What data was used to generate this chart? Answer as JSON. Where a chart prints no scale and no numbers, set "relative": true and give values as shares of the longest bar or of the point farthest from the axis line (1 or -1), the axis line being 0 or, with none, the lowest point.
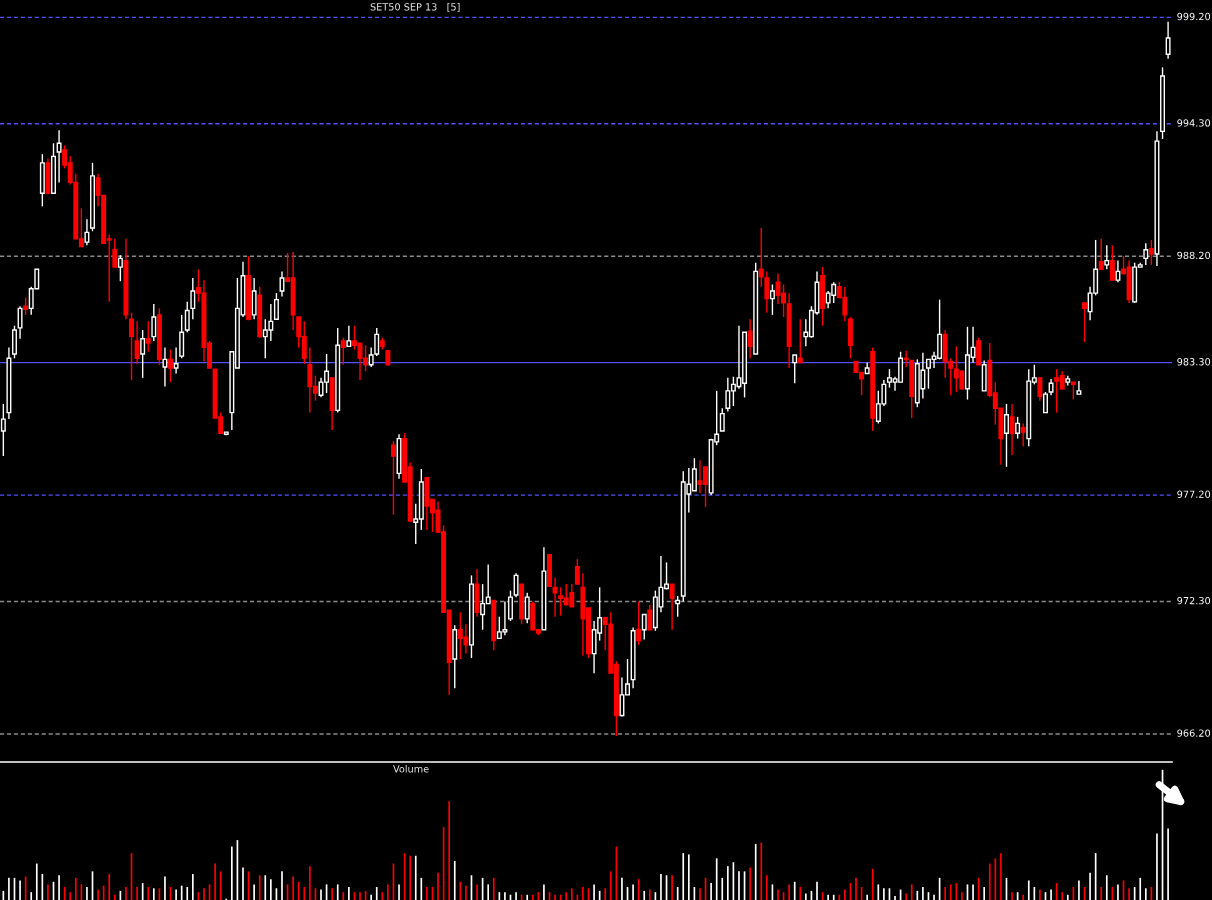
{
  "chart_data": [
    {
      "type": "candlestick",
      "title": "SET50 SEP 13   [5]",
      "categories": [
        null,
        null,
        null,
        null,
        null,
        null,
        null,
        null,
        null,
        null,
        null,
        null,
        null,
        null,
        null,
        null,
        null,
        null,
        null,
        null,
        null,
        null,
        null,
        null,
        null,
        null,
        null,
        null,
        null,
        null,
        null,
        null,
        null,
        null,
        null,
        null,
        null,
        null,
        null,
        null,
        null,
        null,
        null,
        null,
        null,
        null,
        null,
        null,
        null,
        null,
        null,
        null,
        null,
        null,
        null,
        null,
        null,
        null,
        null,
        null,
        null,
        null,
        null,
        null,
        null,
        null,
        null,
        null,
        null,
        null,
        null,
        null,
        null,
        null,
        null,
        null,
        null,
        null,
        null,
        null,
        null,
        null,
        null,
        null,
        null,
        null,
        null,
        null,
        null,
        null,
        null,
        null,
        null,
        null,
        null,
        null,
        null,
        null,
        null,
        null,
        null,
        null,
        null,
        null,
        null,
        null,
        null,
        null,
        null,
        null,
        null,
        null,
        null,
        null,
        null,
        null,
        null,
        null,
        null,
        null,
        null,
        null,
        null,
        null,
        null,
        null,
        null,
        null,
        null,
        null,
        null,
        null,
        null,
        null,
        null,
        null,
        null,
        null,
        null,
        null,
        null,
        null,
        null,
        null,
        null,
        null,
        null,
        null,
        null,
        null,
        null,
        null,
        null,
        null,
        null,
        null,
        null,
        null,
        null,
        null,
        null,
        null,
        null,
        null,
        null,
        null,
        null,
        null,
        null,
        null,
        null,
        null,
        null,
        null,
        null,
        null,
        null,
        null,
        null,
        null,
        null,
        null,
        null,
        null,
        null,
        null,
        null,
        null,
        null,
        null,
        null,
        null,
        null,
        null,
        null,
        null,
        null,
        null,
        null,
        null,
        null,
        null,
        null,
        null,
        null,
        null,
        null,
        null,
        null,
        null
      ],
      "ohlc": [
        [
          980.15,
          981.4,
          979.0,
          980.7
        ],
        [
          981.0,
          984.0,
          980.7,
          983.5
        ],
        [
          983.7,
          985.0,
          983.5,
          984.8
        ],
        [
          984.9,
          985.9,
          984.4,
          985.8
        ],
        [
          985.9,
          986.3,
          985.5,
          985.75
        ],
        [
          985.8,
          986.8,
          985.5,
          986.7
        ],
        [
          986.7,
          987.6,
          986.7,
          987.6
        ],
        [
          991.1,
          992.9,
          990.5,
          992.5
        ],
        [
          992.5,
          992.7,
          991.1,
          991.1
        ],
        [
          991.1,
          993.4,
          991.1,
          992.8
        ],
        [
          993.0,
          994.0,
          991.6,
          993.4
        ],
        [
          993.1,
          993.3,
          992.25,
          992.4
        ],
        [
          992.5,
          992.8,
          991.5,
          991.6
        ],
        [
          991.6,
          992.0,
          989.0,
          989.0
        ],
        [
          989.0,
          990.4,
          988.65,
          988.65
        ],
        [
          988.85,
          989.9,
          988.7,
          989.3
        ],
        [
          989.5,
          992.5,
          989.35,
          991.9
        ],
        [
          991.8,
          992.0,
          990.5,
          991.0
        ],
        [
          991.0,
          991.0,
          988.8,
          988.8
        ],
        [
          989.0,
          989.2,
          986.1,
          988.95
        ],
        [
          988.5,
          989.0,
          987.7,
          987.7
        ],
        [
          987.7,
          988.25,
          987.05,
          988.1
        ],
        [
          988.0,
          989.0,
          985.3,
          985.5
        ],
        [
          985.3,
          985.6,
          982.5,
          984.5
        ],
        [
          984.3,
          985.2,
          983.25,
          983.5
        ],
        [
          983.7,
          984.8,
          982.6,
          984.4
        ],
        [
          984.4,
          985.2,
          983.8,
          984.2
        ],
        [
          984.5,
          986.0,
          984.3,
          985.4
        ],
        [
          985.5,
          985.8,
          983.2,
          983.45
        ],
        [
          983.1,
          984.0,
          982.2,
          983.45
        ],
        [
          983.45,
          983.9,
          982.4,
          983.05
        ],
        [
          983.05,
          984.0,
          982.8,
          983.25
        ],
        [
          983.6,
          985.5,
          983.5,
          984.7
        ],
        [
          984.8,
          986.1,
          984.7,
          985.7
        ],
        [
          985.8,
          987.2,
          985.3,
          986.6
        ],
        [
          986.75,
          987.6,
          986.1,
          986.5
        ],
        [
          986.5,
          987.1,
          983.35,
          984.0
        ],
        [
          984.2,
          984.3,
          983.05,
          983.05
        ],
        [
          983.0,
          983.0,
          980.75,
          980.75
        ],
        [
          980.8,
          981.0,
          980.05,
          980.05
        ],
        [
          980.0,
          980.1,
          979.95,
          980.1
        ],
        [
          981.0,
          983.8,
          980.2,
          983.8
        ],
        [
          983.05,
          987.2,
          983.05,
          985.8
        ],
        [
          985.5,
          987.95,
          985.4,
          987.3
        ],
        [
          987.3,
          988.2,
          985.25,
          985.3
        ],
        [
          985.5,
          987.2,
          985.3,
          986.6
        ],
        [
          986.4,
          986.8,
          984.45,
          984.5
        ],
        [
          984.5,
          985.3,
          983.5,
          984.8
        ],
        [
          984.8,
          986.0,
          984.3,
          985.2
        ],
        [
          985.3,
          986.5,
          985.3,
          986.2
        ],
        [
          986.6,
          987.5,
          986.35,
          987.2
        ],
        [
          987.2,
          988.35,
          987.05,
          987.05
        ],
        [
          987.2,
          988.4,
          984.8,
          985.5
        ],
        [
          985.4,
          985.4,
          984.0,
          984.5
        ],
        [
          984.5,
          985.2,
          983.25,
          983.5
        ],
        [
          983.2,
          984.0,
          981.0,
          982.2
        ],
        [
          982.2,
          982.7,
          981.55,
          981.9
        ],
        [
          981.8,
          982.6,
          981.7,
          982.4
        ],
        [
          982.4,
          983.7,
          981.9,
          982.9
        ],
        [
          982.6,
          982.6,
          980.2,
          981.1
        ],
        [
          981.1,
          984.9,
          981.0,
          984.1
        ],
        [
          984.3,
          984.45,
          983.2,
          984.0
        ],
        [
          984.05,
          985.0,
          984.05,
          984.3
        ],
        [
          984.3,
          985.0,
          983.9,
          984.1
        ],
        [
          984.2,
          984.2,
          982.5,
          983.5
        ],
        [
          983.5,
          984.1,
          982.9,
          983.2
        ],
        [
          983.2,
          984.0,
          983.1,
          983.65
        ],
        [
          983.7,
          984.9,
          983.6,
          984.6
        ],
        [
          984.3,
          984.45,
          983.9,
          984.05
        ],
        [
          983.85,
          983.85,
          983.2,
          983.2
        ],
        [
          979.5,
          979.7,
          976.3,
          979.0
        ],
        [
          978.2,
          980.0,
          977.95,
          979.8
        ],
        [
          979.8,
          980.05,
          977.8,
          977.8
        ],
        [
          978.5,
          978.7,
          976.0,
          976.0
        ],
        [
          975.95,
          976.8,
          974.95,
          976.1
        ],
        [
          976.1,
          978.4,
          975.6,
          977.8
        ],
        [
          978.0,
          978.0,
          975.6,
          976.7
        ],
        [
          977.0,
          977.0,
          975.5,
          976.4
        ],
        [
          976.5,
          976.9,
          975.45,
          975.5
        ],
        [
          975.5,
          975.8,
          971.8,
          971.8
        ],
        [
          971.9,
          971.9,
          968.0,
          969.5
        ],
        [
          969.65,
          971.2,
          968.3,
          971.0
        ],
        [
          971.0,
          971.8,
          969.65,
          970.6
        ],
        [
          970.65,
          971.25,
          969.9,
          970.3
        ],
        [
          970.3,
          973.5,
          969.7,
          973.1
        ],
        [
          973.1,
          973.8,
          971.6,
          971.8
        ],
        [
          971.7,
          973.1,
          971.0,
          972.2
        ],
        [
          972.2,
          974.0,
          972.2,
          972.5
        ],
        [
          972.35,
          972.35,
          970.05,
          970.5
        ],
        [
          970.6,
          971.6,
          970.6,
          970.9
        ],
        [
          970.9,
          972.3,
          970.75,
          971.0
        ],
        [
          971.5,
          972.8,
          971.4,
          972.5
        ],
        [
          972.6,
          973.6,
          972.5,
          973.5
        ],
        [
          973.1,
          973.1,
          971.25,
          971.5
        ],
        [
          971.5,
          972.7,
          971.3,
          972.5
        ],
        [
          972.2,
          972.3,
          971.0,
          971.0
        ],
        [
          971.0,
          971.0,
          970.75,
          970.85
        ],
        [
          971.0,
          974.8,
          971.0,
          973.7
        ],
        [
          974.45,
          974.45,
          973.0,
          973.0
        ],
        [
          972.95,
          973.4,
          971.6,
          972.7
        ],
        [
          972.55,
          972.95,
          971.65,
          972.45
        ],
        [
          972.45,
          973.1,
          972.15,
          972.15
        ],
        [
          972.7,
          973.1,
          972.05,
          972.05
        ],
        [
          973.9,
          974.25,
          973.1,
          973.1
        ],
        [
          972.95,
          973.6,
          969.8,
          971.5
        ],
        [
          972.0,
          972.0,
          969.7,
          969.9
        ],
        [
          969.9,
          971.4,
          969.0,
          971.0
        ],
        [
          970.85,
          972.95,
          970.5,
          971.55
        ],
        [
          971.55,
          971.55,
          970.05,
          971.25
        ],
        [
          971.25,
          971.8,
          969.0,
          969.0
        ],
        [
          969.4,
          969.55,
          966.1,
          967.05
        ],
        [
          967.05,
          968.8,
          967.0,
          968.0
        ],
        [
          968.0,
          969.65,
          968.0,
          968.5
        ],
        [
          968.7,
          971.1,
          968.3,
          970.95
        ],
        [
          971.0,
          972.3,
          970.3,
          970.5
        ],
        [
          971.0,
          971.7,
          970.55,
          971.7
        ],
        [
          971.9,
          972.15,
          971.0,
          971.0
        ],
        [
          971.1,
          972.8,
          970.95,
          972.5
        ],
        [
          972.05,
          974.4,
          971.8,
          972.95
        ],
        [
          972.9,
          974.1,
          972.85,
          973.1
        ],
        [
          973.1,
          973.1,
          971.0,
          972.45
        ],
        [
          972.2,
          972.55,
          971.6,
          972.35
        ],
        [
          972.55,
          978.3,
          972.3,
          977.8
        ],
        [
          977.25,
          978.45,
          976.4,
          977.7
        ],
        [
          977.4,
          978.9,
          977.4,
          978.4
        ],
        [
          977.85,
          978.8,
          977.3,
          977.7
        ],
        [
          978.5,
          978.5,
          976.65,
          977.7
        ],
        [
          977.3,
          979.8,
          977.2,
          979.75
        ],
        [
          979.65,
          982.0,
          979.5,
          980.0
        ],
        [
          980.15,
          981.2,
          980.15,
          980.95
        ],
        [
          981.2,
          982.6,
          981.05,
          982.0
        ],
        [
          982.0,
          982.65,
          981.3,
          982.3
        ],
        [
          982.2,
          985.0,
          982.1,
          982.6
        ],
        [
          982.35,
          984.7,
          981.7,
          984.7
        ],
        [
          984.75,
          985.3,
          983.5,
          984.05
        ],
        [
          983.7,
          987.9,
          983.7,
          987.5
        ],
        [
          987.6,
          989.5,
          986.8,
          987.25
        ],
        [
          987.2,
          987.5,
          985.6,
          986.25
        ],
        [
          986.25,
          986.9,
          985.5,
          986.6
        ],
        [
          987.0,
          987.4,
          986.0,
          986.4
        ],
        [
          986.5,
          986.9,
          985.4,
          986.05
        ],
        [
          986.0,
          986.5,
          983.05,
          984.05
        ],
        [
          983.3,
          983.65,
          982.35,
          983.65
        ],
        [
          983.5,
          985.3,
          983.3,
          983.3
        ],
        [
          984.5,
          985.3,
          984.05,
          984.7
        ],
        [
          984.5,
          985.9,
          984.45,
          985.7
        ],
        [
          985.6,
          987.5,
          985.5,
          987.0
        ],
        [
          987.3,
          987.7,
          985.0,
          985.8
        ],
        [
          986.05,
          986.6,
          985.8,
          986.5
        ],
        [
          986.4,
          987.0,
          986.05,
          986.9
        ],
        [
          986.8,
          987.0,
          986.3,
          986.3
        ],
        [
          986.3,
          986.8,
          985.2,
          985.5
        ],
        [
          985.3,
          985.4,
          983.5,
          984.1
        ],
        [
          983.35,
          983.35,
          982.85,
          982.85
        ],
        [
          982.85,
          982.85,
          981.8,
          982.55
        ],
        [
          982.8,
          983.3,
          982.8,
          983.05
        ],
        [
          983.8,
          984.0,
          980.15,
          980.75
        ],
        [
          980.6,
          982.0,
          980.5,
          981.4
        ],
        [
          981.4,
          982.5,
          981.3,
          982.3
        ],
        [
          982.4,
          983.0,
          982.15,
          982.6
        ],
        [
          982.4,
          982.65,
          982.0,
          982.55
        ],
        [
          982.4,
          983.8,
          982.4,
          983.5
        ],
        [
          983.5,
          983.85,
          983.1,
          983.45
        ],
        [
          983.4,
          983.4,
          980.75,
          981.75
        ],
        [
          981.45,
          983.45,
          981.25,
          983.25
        ],
        [
          982.1,
          983.75,
          981.65,
          982.95
        ],
        [
          983.05,
          983.45,
          982.1,
          983.45
        ],
        [
          983.45,
          983.8,
          983.05,
          983.6
        ],
        [
          983.5,
          986.2,
          983.45,
          984.6
        ],
        [
          984.6,
          984.8,
          982.6,
          983.35
        ],
        [
          983.35,
          983.5,
          981.8,
          983.05
        ],
        [
          983.0,
          984.05,
          981.95,
          982.6
        ],
        [
          982.9,
          982.95,
          982.05,
          982.1
        ],
        [
          982.1,
          984.95,
          981.6,
          983.65
        ],
        [
          983.55,
          984.95,
          983.3,
          984.0
        ],
        [
          984.3,
          984.45,
          983.2,
          983.2
        ],
        [
          982.0,
          983.4,
          982.0,
          983.2
        ],
        [
          983.4,
          984.2,
          981.7,
          981.8
        ],
        [
          981.9,
          982.4,
          980.45,
          981.2
        ],
        [
          981.2,
          981.2,
          978.6,
          979.8
        ],
        [
          980.05,
          981.4,
          978.5,
          980.9
        ],
        [
          980.8,
          981.4,
          979.05,
          980.05
        ],
        [
          980.05,
          980.8,
          979.8,
          980.5
        ],
        [
          980.3,
          980.5,
          979.45,
          980.1
        ],
        [
          979.8,
          983.0,
          979.45,
          982.45
        ],
        [
          982.4,
          983.2,
          982.3,
          982.6
        ],
        [
          982.6,
          982.6,
          981.55,
          981.75
        ],
        [
          981.0,
          981.95,
          981.0,
          981.85
        ],
        [
          981.95,
          982.55,
          981.8,
          982.35
        ],
        [
          982.6,
          983.0,
          981.0,
          982.45
        ],
        [
          982.7,
          982.9,
          982.05,
          982.1
        ],
        [
          982.4,
          982.7,
          982.25,
          982.55
        ],
        [
          982.4,
          982.4,
          981.6,
          982.3
        ],
        [
          981.85,
          982.45,
          981.85,
          982.0
        ],
        [
          986.05,
          986.05,
          984.25,
          985.8
        ],
        [
          985.65,
          986.8,
          985.25,
          986.5
        ],
        [
          986.5,
          988.95,
          986.4,
          987.6
        ],
        [
          987.95,
          989.0,
          987.6,
          987.6
        ],
        [
          987.8,
          988.7,
          987.6,
          988.0
        ],
        [
          988.0,
          988.7,
          987.1,
          987.1
        ],
        [
          987.1,
          988.0,
          987.0,
          987.5
        ],
        [
          987.6,
          988.2,
          987.35,
          987.4
        ],
        [
          987.7,
          988.0,
          986.05,
          986.2
        ],
        [
          986.1,
          987.9,
          986.05,
          987.7
        ],
        [
          987.7,
          987.9,
          987.7,
          987.8
        ],
        [
          988.1,
          988.8,
          987.8,
          988.5
        ],
        [
          988.55,
          988.95,
          987.8,
          988.3
        ],
        [
          988.3,
          993.95,
          987.75,
          993.5
        ],
        [
          993.95,
          996.9,
          993.6,
          996.5
        ],
        [
          997.5,
          999.0,
          997.3,
          998.25
        ]
      ],
      "colors": [
        "#ffffff",
        "#ffffff",
        "#ffffff",
        "#ffffff",
        "#ff0000",
        "#ffffff",
        "#ffffff",
        "#ffffff",
        "#ff0000",
        "#ffffff",
        "#ffffff",
        "#ff0000",
        "#ff0000",
        "#ff0000",
        "#ff0000",
        "#ffffff",
        "#ffffff",
        "#ff0000",
        "#ff0000",
        "#ff0000",
        "#ff0000",
        "#ffffff",
        "#ff0000",
        "#ff0000",
        "#ff0000",
        "#ffffff",
        "#ff0000",
        "#ffffff",
        "#ff0000",
        "#ffffff",
        "#ff0000",
        "#ffffff",
        "#ffffff",
        "#ffffff",
        "#ffffff",
        "#ff0000",
        "#ff0000",
        "#ff0000",
        "#ff0000",
        "#ff0000",
        "#ffffff",
        "#ffffff",
        "#ffffff",
        "#ffffff",
        "#ff0000",
        "#ffffff",
        "#ff0000",
        "#ffffff",
        "#ffffff",
        "#ffffff",
        "#ffffff",
        "#ff0000",
        "#ff0000",
        "#ff0000",
        "#ff0000",
        "#ff0000",
        "#ff0000",
        "#ffffff",
        "#ffffff",
        "#ff0000",
        "#ffffff",
        "#ff0000",
        "#ffffff",
        "#ff0000",
        "#ff0000",
        "#ff0000",
        "#ffffff",
        "#ffffff",
        "#ff0000",
        "#ff0000",
        "#ff0000",
        "#ffffff",
        "#ff0000",
        "#ff0000",
        "#ffffff",
        "#ffffff",
        "#ff0000",
        "#ff0000",
        "#ff0000",
        "#ff0000",
        "#ff0000",
        "#ffffff",
        "#ff0000",
        "#ff0000",
        "#ffffff",
        "#ff0000",
        "#ffffff",
        "#ffffff",
        "#ff0000",
        "#ffffff",
        "#ffffff",
        "#ffffff",
        "#ffffff",
        "#ff0000",
        "#ffffff",
        "#ff0000",
        "#ff0000",
        "#ffffff",
        "#ff0000",
        "#ff0000",
        "#ff0000",
        "#ff0000",
        "#ff0000",
        "#ff0000",
        "#ff0000",
        "#ff0000",
        "#ffffff",
        "#ffffff",
        "#ff0000",
        "#ff0000",
        "#ff0000",
        "#ffffff",
        "#ffffff",
        "#ffffff",
        "#ff0000",
        "#ffffff",
        "#ff0000",
        "#ffffff",
        "#ffffff",
        "#ffffff",
        "#ff0000",
        "#ffffff",
        "#ffffff",
        "#ffffff",
        "#ffffff",
        "#ff0000",
        "#ff0000",
        "#ffffff",
        "#ffffff",
        "#ffffff",
        "#ffffff",
        "#ffffff",
        "#ffffff",
        "#ffffff",
        "#ff0000",
        "#ffffff",
        "#ff0000",
        "#ff0000",
        "#ffffff",
        "#ff0000",
        "#ff0000",
        "#ff0000",
        "#ffffff",
        "#ff0000",
        "#ffffff",
        "#ffffff",
        "#ffffff",
        "#ff0000",
        "#ffffff",
        "#ffffff",
        "#ff0000",
        "#ff0000",
        "#ff0000",
        "#ff0000",
        "#ff0000",
        "#ffffff",
        "#ff0000",
        "#ffffff",
        "#ffffff",
        "#ffffff",
        "#ffffff",
        "#ffffff",
        "#ff0000",
        "#ff0000",
        "#ffffff",
        "#ffffff",
        "#ffffff",
        "#ffffff",
        "#ffffff",
        "#ff0000",
        "#ff0000",
        "#ff0000",
        "#ff0000",
        "#ffffff",
        "#ffffff",
        "#ff0000",
        "#ffffff",
        "#ff0000",
        "#ff0000",
        "#ff0000",
        "#ffffff",
        "#ff0000",
        "#ffffff",
        "#ff0000",
        "#ffffff",
        "#ffffff",
        "#ff0000",
        "#ffffff",
        "#ffffff",
        "#ff0000",
        "#ff0000",
        "#ffffff",
        "#ff0000",
        "#ffffff",
        "#ff0000",
        "#ffffff",
        "#ffffff",
        "#ff0000",
        "#ffffff",
        "#ff0000",
        "#ffffff",
        "#ff0000",
        "#ff0000",
        "#ffffff",
        "#ffffff",
        "#ffffff",
        "#ff0000",
        "#ffffff",
        "#ffffff",
        "#ffffff"
      ],
      "ylim": [
        965.0,
        1000.0
      ],
      "yticks": [
        {
          "value": 966.2,
          "label": "966.20"
        },
        {
          "value": 972.3,
          "label": "972.30"
        },
        {
          "value": 977.2,
          "label": "977.20"
        },
        {
          "value": 983.3,
          "label": "983.30"
        },
        {
          "value": 988.2,
          "label": "988.20"
        },
        {
          "value": 994.3,
          "label": "994.30"
        },
        {
          "value": 999.2,
          "label": "999.20"
        }
      ],
      "ref_lines": [
        {
          "axis": "y",
          "value": 999.2,
          "color": "#5050ff",
          "line_style": "dashed"
        },
        {
          "axis": "y",
          "value": 994.3,
          "color": "#5050ff",
          "line_style": "dashed"
        },
        {
          "axis": "y",
          "value": 988.2,
          "color": "#8a8a8a",
          "line_style": "dashed"
        },
        {
          "axis": "y",
          "value": 983.3,
          "color": "#5050ff",
          "line_style": "solid"
        },
        {
          "axis": "y",
          "value": 977.2,
          "color": "#5050ff",
          "line_style": "dashed"
        },
        {
          "axis": "y",
          "value": 972.3,
          "color": "#8a8a8a",
          "line_style": "dashed"
        },
        {
          "axis": "y",
          "value": 966.2,
          "color": "#8a8a8a",
          "line_style": "dashed"
        }
      ]
    },
    {
      "type": "bar",
      "title": "Volume",
      "relative": true,
      "categories": [
        null,
        null,
        null,
        null,
        null,
        null,
        null,
        null,
        null,
        null,
        null,
        null,
        null,
        null,
        null,
        null,
        null,
        null,
        null,
        null,
        null,
        null,
        null,
        null,
        null,
        null,
        null,
        null,
        null,
        null,
        null,
        null,
        null,
        null,
        null,
        null,
        null,
        null,
        null,
        null,
        null,
        null,
        null,
        null,
        null,
        null,
        null,
        null,
        null,
        null,
        null,
        null,
        null,
        null,
        null,
        null,
        null,
        null,
        null,
        null,
        null,
        null,
        null,
        null,
        null,
        null,
        null,
        null,
        null,
        null,
        null,
        null,
        null,
        null,
        null,
        null,
        null,
        null,
        null,
        null,
        null,
        null,
        null,
        null,
        null,
        null,
        null,
        null,
        null,
        null,
        null,
        null,
        null,
        null,
        null,
        null,
        null,
        null,
        null,
        null,
        null,
        null,
        null,
        null,
        null,
        null,
        null,
        null,
        null,
        null,
        null,
        null,
        null,
        null,
        null,
        null,
        null,
        null,
        null,
        null,
        null,
        null,
        null,
        null,
        null,
        null,
        null,
        null,
        null,
        null,
        null,
        null,
        null,
        null,
        null,
        null,
        null,
        null,
        null,
        null,
        null,
        null,
        null,
        null,
        null,
        null,
        null,
        null,
        null,
        null,
        null,
        null,
        null,
        null,
        null,
        null,
        null,
        null,
        null,
        null,
        null,
        null,
        null,
        null,
        null,
        null,
        null,
        null,
        null,
        null,
        null,
        null,
        null,
        null,
        null,
        null,
        null,
        null,
        null,
        null,
        null,
        null,
        null,
        null,
        null,
        null,
        null,
        null,
        null,
        null,
        null,
        null,
        null,
        null,
        null,
        null,
        null,
        null,
        null,
        null,
        null,
        null,
        null,
        null,
        null,
        null,
        null,
        null,
        null,
        null
      ],
      "values": [
        0.07,
        0.17,
        0.17,
        0.15,
        0.18,
        0.06,
        0.28,
        0.2,
        0.12,
        0.14,
        0.19,
        0.1,
        0.06,
        0.17,
        0.12,
        0.1,
        0.22,
        0.08,
        0.11,
        0.2,
        0.04,
        0.07,
        0.1,
        0.36,
        0.1,
        0.13,
        0.1,
        0.09,
        0.09,
        0.18,
        0.1,
        0.08,
        0.11,
        0.1,
        0.2,
        0.06,
        0.09,
        0.12,
        0.28,
        0.22,
        0.01,
        0.41,
        0.46,
        0.25,
        0.22,
        0.12,
        0.19,
        0.19,
        0.16,
        0.09,
        0.22,
        0.12,
        0.18,
        0.14,
        0.1,
        0.26,
        0.09,
        0.08,
        0.12,
        0.09,
        0.12,
        0.06,
        0.1,
        0.06,
        0.06,
        0.07,
        0.04,
        0.1,
        0.06,
        0.12,
        0.28,
        0.12,
        0.36,
        0.34,
        0.34,
        0.17,
        0.1,
        0.1,
        0.21,
        0.56,
        0.76,
        0.3,
        0.14,
        0.11,
        0.19,
        0.12,
        0.17,
        0.12,
        0.17,
        0.06,
        0.06,
        0.04,
        0.06,
        0.04,
        0.04,
        0.04,
        0.06,
        0.12,
        0.06,
        0.04,
        0.04,
        0.06,
        0.09,
        0.04,
        0.1,
        0.09,
        0.12,
        0.07,
        0.09,
        0.22,
        0.41,
        0.17,
        0.1,
        0.12,
        0.16,
        0.07,
        0.08,
        0.06,
        0.2,
        0.19,
        0.19,
        0.1,
        0.36,
        0.35,
        0.1,
        0.09,
        0.17,
        0.13,
        0.32,
        0.17,
        0.26,
        0.29,
        0.22,
        0.22,
        0.25,
        0.43,
        0.44,
        0.19,
        0.12,
        0.08,
        0.06,
        0.12,
        0.14,
        0.1,
        0.05,
        0.07,
        0.14,
        0.06,
        0.04,
        0.04,
        0.04,
        0.08,
        0.13,
        0.17,
        0.1,
        0.04,
        0.24,
        0.12,
        0.09,
        0.09,
        0.03,
        0.08,
        0.05,
        0.12,
        0.07,
        0.1,
        0.06,
        0.04,
        0.17,
        0.1,
        0.12,
        0.13,
        0.06,
        0.12,
        0.12,
        0.17,
        0.1,
        0.28,
        0.32,
        0.36,
        0.17,
        0.06,
        0.06,
        0.04,
        0.15,
        0.1,
        0.08,
        0.06,
        0.08,
        0.13,
        0.06,
        0.04,
        0.1,
        0.15,
        0.1,
        0.21,
        0.36,
        0.1,
        0.19,
        0.1,
        0.12,
        0.15,
        0.09,
        0.1,
        0.17,
        0.09,
        0.1,
        0.51,
        1,
        0.55
      ],
      "colors": [
        "#ffffff",
        "#ffffff",
        "#ffffff",
        "#ffffff",
        "#ff0000",
        "#ffffff",
        "#ffffff",
        "#ffffff",
        "#ff0000",
        "#ffffff",
        "#ffffff",
        "#ff0000",
        "#ff0000",
        "#ff0000",
        "#ff0000",
        "#ffffff",
        "#ffffff",
        "#ff0000",
        "#ff0000",
        "#ff0000",
        "#ff0000",
        "#ffffff",
        "#ff0000",
        "#ff0000",
        "#ff0000",
        "#ffffff",
        "#ff0000",
        "#ffffff",
        "#ff0000",
        "#ffffff",
        "#ff0000",
        "#ffffff",
        "#ffffff",
        "#ffffff",
        "#ffffff",
        "#ff0000",
        "#ff0000",
        "#ff0000",
        "#ff0000",
        "#ff0000",
        "#ffffff",
        "#ffffff",
        "#ffffff",
        "#ffffff",
        "#ff0000",
        "#ffffff",
        "#ff0000",
        "#ffffff",
        "#ffffff",
        "#ffffff",
        "#ffffff",
        "#ff0000",
        "#ff0000",
        "#ff0000",
        "#ff0000",
        "#ff0000",
        "#ff0000",
        "#ffffff",
        "#ffffff",
        "#ff0000",
        "#ffffff",
        "#ff0000",
        "#ffffff",
        "#ff0000",
        "#ff0000",
        "#ff0000",
        "#ffffff",
        "#ffffff",
        "#ff0000",
        "#ff0000",
        "#ff0000",
        "#ffffff",
        "#ff0000",
        "#ff0000",
        "#ffffff",
        "#ffffff",
        "#ff0000",
        "#ff0000",
        "#ff0000",
        "#ff0000",
        "#ff0000",
        "#ffffff",
        "#ff0000",
        "#ff0000",
        "#ffffff",
        "#ff0000",
        "#ffffff",
        "#ffffff",
        "#ff0000",
        "#ffffff",
        "#ffffff",
        "#ffffff",
        "#ffffff",
        "#ff0000",
        "#ffffff",
        "#ff0000",
        "#ff0000",
        "#ffffff",
        "#ff0000",
        "#ff0000",
        "#ff0000",
        "#ff0000",
        "#ff0000",
        "#ff0000",
        "#ff0000",
        "#ff0000",
        "#ffffff",
        "#ffffff",
        "#ff0000",
        "#ff0000",
        "#ff0000",
        "#ffffff",
        "#ffffff",
        "#ffffff",
        "#ff0000",
        "#ffffff",
        "#ff0000",
        "#ffffff",
        "#ffffff",
        "#ffffff",
        "#ff0000",
        "#ffffff",
        "#ffffff",
        "#ffffff",
        "#ffffff",
        "#ff0000",
        "#ff0000",
        "#ffffff",
        "#ffffff",
        "#ffffff",
        "#ffffff",
        "#ffffff",
        "#ffffff",
        "#ffffff",
        "#ff0000",
        "#ffffff",
        "#ff0000",
        "#ff0000",
        "#ffffff",
        "#ff0000",
        "#ff0000",
        "#ff0000",
        "#ffffff",
        "#ff0000",
        "#ffffff",
        "#ffffff",
        "#ffffff",
        "#ff0000",
        "#ffffff",
        "#ffffff",
        "#ff0000",
        "#ff0000",
        "#ff0000",
        "#ff0000",
        "#ff0000",
        "#ffffff",
        "#ff0000",
        "#ffffff",
        "#ffffff",
        "#ffffff",
        "#ffffff",
        "#ffffff",
        "#ff0000",
        "#ff0000",
        "#ffffff",
        "#ffffff",
        "#ffffff",
        "#ffffff",
        "#ffffff",
        "#ff0000",
        "#ff0000",
        "#ff0000",
        "#ff0000",
        "#ffffff",
        "#ffffff",
        "#ff0000",
        "#ffffff",
        "#ff0000",
        "#ff0000",
        "#ff0000",
        "#ffffff",
        "#ff0000",
        "#ffffff",
        "#ff0000",
        "#ffffff",
        "#ffffff",
        "#ff0000",
        "#ffffff",
        "#ffffff",
        "#ff0000",
        "#ff0000",
        "#ffffff",
        "#ff0000",
        "#ffffff",
        "#ff0000",
        "#ffffff",
        "#ffffff",
        "#ff0000",
        "#ffffff",
        "#ff0000",
        "#ffffff",
        "#ff0000",
        "#ff0000",
        "#ffffff",
        "#ffffff",
        "#ffffff",
        "#ff0000",
        "#ffffff",
        "#ffffff",
        "#ffffff"
      ]
    }
  ]
}
